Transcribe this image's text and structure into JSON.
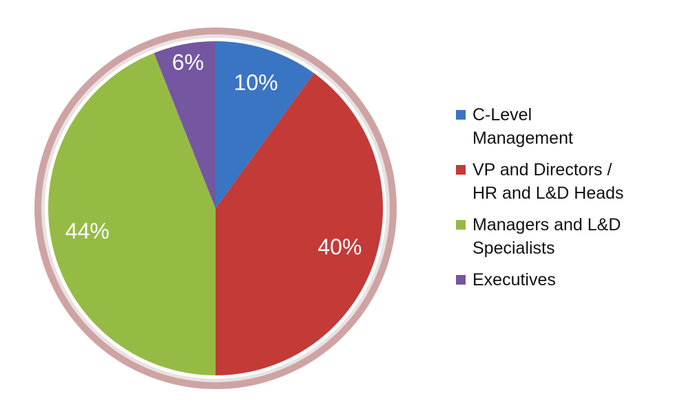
{
  "chart_data": {
    "type": "pie",
    "categories": [
      "C-Level Management",
      "VP and Directors / HR and L&D Heads",
      "Managers and L&D Specialists",
      "Executives"
    ],
    "values": [
      10,
      40,
      44,
      6
    ],
    "value_labels": [
      "10%",
      "40%",
      "44%",
      "6%"
    ],
    "colors": [
      "#3a75c4",
      "#c33a37",
      "#95bb45",
      "#7556a0"
    ],
    "legend": "right"
  }
}
